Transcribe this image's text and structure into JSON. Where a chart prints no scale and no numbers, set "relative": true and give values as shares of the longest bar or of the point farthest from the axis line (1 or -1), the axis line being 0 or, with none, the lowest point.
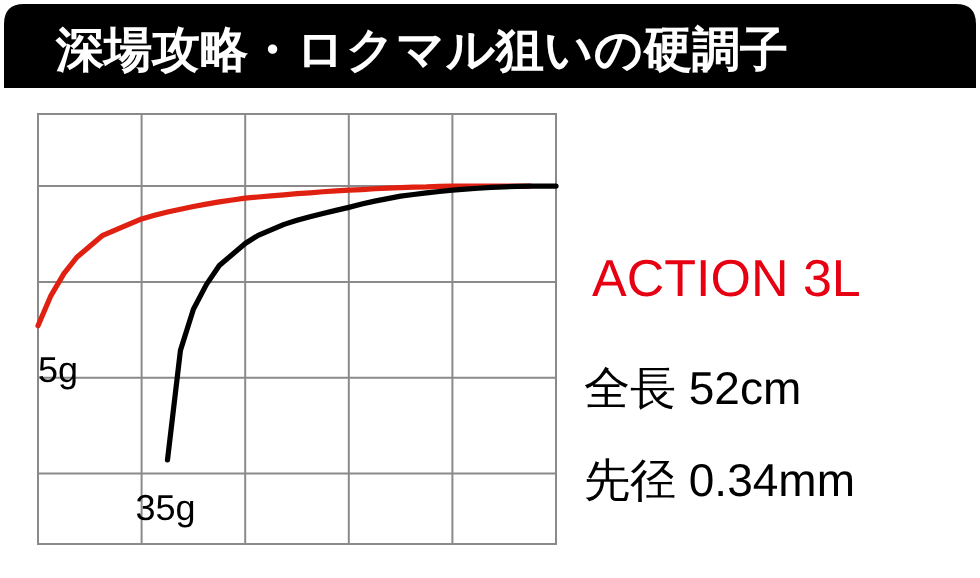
{
  "chart_data": {
    "type": "line",
    "title": "深場攻略・ロクマル狙いの硬調子",
    "relative": true,
    "grid": true,
    "categories": [
      null,
      null,
      null,
      null,
      null,
      null,
      null,
      null,
      null,
      null,
      null,
      null,
      null,
      null,
      null,
      null,
      null,
      null,
      null,
      null,
      null,
      null,
      null,
      null,
      null,
      null,
      null,
      null,
      null,
      null,
      null,
      null,
      null,
      null,
      null,
      null,
      null,
      null,
      null,
      null,
      null
    ],
    "series": [
      {
        "name": "5g",
        "color": "#e02010",
        "values": [
          -0.51,
          -0.4,
          -0.32,
          -0.26,
          -0.22,
          -0.18,
          -0.16,
          -0.14,
          -0.12,
          -0.107,
          -0.095,
          -0.085,
          -0.075,
          -0.066,
          -0.058,
          -0.051,
          -0.044,
          -0.04,
          -0.036,
          -0.032,
          -0.028,
          -0.025,
          -0.021,
          -0.018,
          -0.015,
          -0.013,
          -0.01,
          -0.008,
          -0.006,
          -0.004,
          -0.003,
          -0.001,
          0,
          0,
          0,
          0,
          0,
          0,
          0,
          null,
          null
        ]
      },
      {
        "name": "35g",
        "color": "#000000",
        "values": [
          null,
          null,
          null,
          null,
          null,
          null,
          null,
          null,
          null,
          null,
          -1.0,
          -0.6,
          -0.45,
          -0.36,
          -0.29,
          -0.25,
          -0.21,
          -0.18,
          -0.16,
          -0.14,
          -0.125,
          -0.112,
          -0.1,
          -0.089,
          -0.078,
          -0.066,
          -0.055,
          -0.046,
          -0.037,
          -0.031,
          -0.025,
          -0.02,
          -0.015,
          -0.011,
          -0.008,
          -0.005,
          -0.003,
          -0.001,
          0,
          0,
          0
        ]
      }
    ],
    "annotations": [
      "ACTION 3L",
      "全長 52cm",
      "先径 0.34mm"
    ]
  }
}
